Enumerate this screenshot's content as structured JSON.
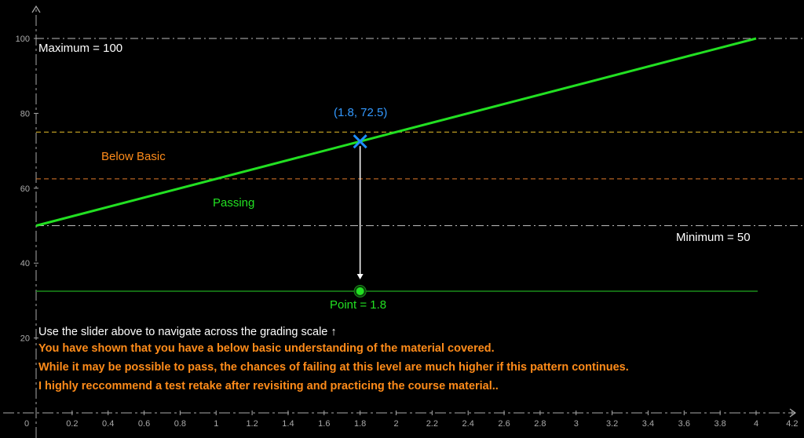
{
  "colors": {
    "background": "#000000",
    "axis": "#aaaaaa",
    "main_line": "#22e022",
    "threshold_high": "#e8c02a",
    "threshold_mid": "#e07a2a",
    "boundary": "#bbbbbb",
    "point": "#1e90ff",
    "slider": "#22e022",
    "message": "#ff8c1a",
    "below_basic_label": "#ff8c1a",
    "passing_label": "#22e022"
  },
  "chart_data": {
    "type": "line",
    "x_ticks": [
      "0.2",
      "0.4",
      "0.6",
      "0.8",
      "1",
      "1.2",
      "1.4",
      "1.6",
      "1.8",
      "2",
      "2.2",
      "2.4",
      "2.6",
      "2.8",
      "3",
      "3.2",
      "3.4",
      "3.6",
      "3.8",
      "4",
      "4.2"
    ],
    "x_origin_label": "0",
    "y_ticks": [
      "20",
      "40",
      "60",
      "80",
      "100"
    ],
    "xlim": [
      0,
      4.2
    ],
    "ylim": [
      0,
      100
    ],
    "line": {
      "x": [
        0,
        4
      ],
      "y": [
        50,
        100
      ]
    },
    "thresholds": {
      "maximum": 100,
      "yellow": 75,
      "orange": 62.5,
      "minimum": 50
    },
    "point": {
      "x": 1.8,
      "y": 72.5,
      "label": "(1.8, 72.5)"
    },
    "slider": {
      "value": 1.8,
      "y_level": 32.5
    }
  },
  "labels": {
    "maximum": "Maximum = 100",
    "minimum": "Minimum = 50",
    "below_basic": "Below Basic",
    "passing": "Passing",
    "point_label": "Point = 1.8",
    "slider_hint": "Use the slider above to navigate across the grading scale ↑"
  },
  "messages": [
    "You have shown that you have a below basic understanding of the material covered.",
    "While it may be possible to pass, the chances of failing at this level are much higher if this pattern continues.",
    "I highly reccommend a test retake after revisiting and practicing the course material.."
  ]
}
